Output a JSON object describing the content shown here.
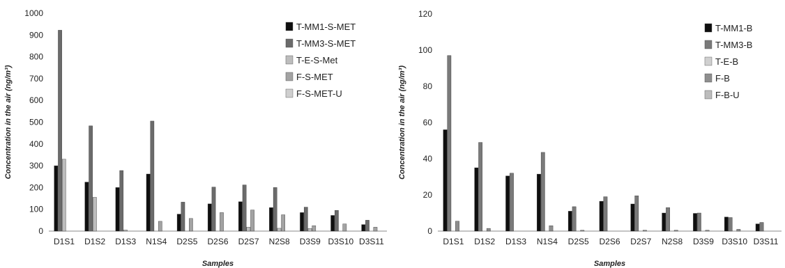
{
  "chart_data": [
    {
      "type": "bar",
      "categories": [
        "D1S1",
        "D1S2",
        "D1S3",
        "N1S4",
        "D2S5",
        "D2S6",
        "D2S7",
        "N2S8",
        "D3S9",
        "D3S10",
        "D3S11"
      ],
      "series": [
        {
          "name": "T-MM1-S-MET",
          "color": "#0f0f0f",
          "values": [
            300,
            225,
            200,
            262,
            78,
            125,
            135,
            108,
            85,
            72,
            30
          ]
        },
        {
          "name": "T-MM3-S-MET",
          "color": "#6b6b6b",
          "values": [
            922,
            483,
            278,
            505,
            133,
            202,
            212,
            200,
            110,
            95,
            50
          ]
        },
        {
          "name": "T-E-S-Met",
          "color": "#bdbdbd",
          "values": [
            330,
            155,
            5,
            0,
            0,
            0,
            18,
            13,
            12,
            0,
            0
          ]
        },
        {
          "name": "F-S-MET",
          "color": "#a3a3a3",
          "values": [
            0,
            0,
            0,
            45,
            58,
            85,
            97,
            75,
            25,
            33,
            18
          ]
        },
        {
          "name": "F-S-MET-U",
          "color": "#cfcfcf",
          "values": [
            0,
            0,
            0,
            0,
            0,
            0,
            0,
            0,
            0,
            0,
            0
          ]
        }
      ],
      "title": "",
      "xlabel": "Samples",
      "ylabel": "Concentration in the air (ng/m³)",
      "ylim": [
        0,
        1000
      ],
      "yticks": [
        0,
        100,
        200,
        300,
        400,
        500,
        600,
        700,
        800,
        900,
        1000
      ],
      "legend": "top-right"
    },
    {
      "type": "bar",
      "categories": [
        "D1S1",
        "D1S2",
        "D1S3",
        "N1S4",
        "D2S5",
        "D2S6",
        "D2S7",
        "N2S8",
        "D3S9",
        "D3S10",
        "D3S11"
      ],
      "series": [
        {
          "name": "T-MM1-B",
          "color": "#0f0f0f",
          "values": [
            56,
            35,
            30.5,
            31.5,
            11,
            16.5,
            15,
            10,
            9.8,
            7.8,
            4
          ]
        },
        {
          "name": "T-MM3-B",
          "color": "#7a7a7a",
          "values": [
            97,
            49,
            32,
            43.5,
            13.5,
            19,
            19.5,
            13,
            10,
            7.5,
            4.8
          ]
        },
        {
          "name": "T-E-B",
          "color": "#d0d0d0",
          "values": [
            0,
            0,
            0,
            0,
            0,
            0,
            0,
            0,
            0,
            0,
            0
          ]
        },
        {
          "name": "F-B",
          "color": "#8e8e8e",
          "values": [
            5.5,
            1.5,
            0,
            3,
            0.5,
            0,
            0.5,
            0.5,
            0.5,
            1,
            0
          ]
        },
        {
          "name": "F-B-U",
          "color": "#bcbcbc",
          "values": [
            0,
            0,
            0,
            0,
            0,
            0,
            0,
            0,
            0,
            0,
            0
          ]
        }
      ],
      "title": "",
      "xlabel": "Samples",
      "ylabel": "Concentration in the air (ng/m³)",
      "ylim": [
        0,
        120
      ],
      "yticks": [
        0,
        20,
        40,
        60,
        80,
        100,
        120
      ],
      "legend": "top-right"
    }
  ]
}
